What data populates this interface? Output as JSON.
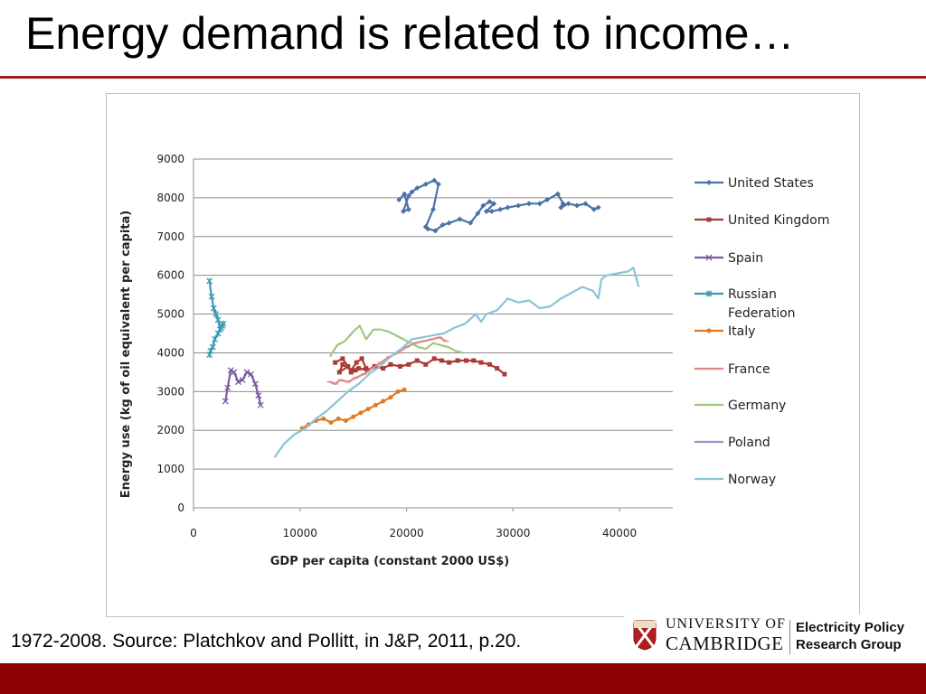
{
  "slide": {
    "title": "Energy demand is related to income…",
    "footer": "1972-2008.  Source: Platchkov and Pollitt, in J&P, 2011, p.20.",
    "accent_color": "#a01c1c",
    "bottom_bar_color": "#8b0000"
  },
  "logo": {
    "university_line1": "UNIVERSITY OF",
    "university_line2": "CAMBRIDGE",
    "group_line1": "Electricity Policy",
    "group_line2": "Research Group"
  },
  "chart_data": {
    "type": "line",
    "title": "",
    "xlabel": "GDP per capita (constant 2000 US$)",
    "ylabel": "Energy use (kg of oil equivalent per capita)",
    "xlim": [
      0,
      45000
    ],
    "ylim": [
      0,
      9000
    ],
    "xticks": [
      "0",
      "10000",
      "20000",
      "30000",
      "40000"
    ],
    "yticks": [
      "0",
      "1000",
      "2000",
      "3000",
      "4000",
      "5000",
      "6000",
      "7000",
      "8000",
      "9000"
    ],
    "grid": "horizontal",
    "legend_position": "right",
    "series": [
      {
        "name": "United States",
        "color": "#4a72a8",
        "marker": "diamond",
        "x": [
          19300,
          19800,
          20200,
          19700,
          20200,
          20500,
          21000,
          21800,
          22600,
          23000,
          22500,
          21800,
          22000,
          22700,
          23400,
          24000,
          25000,
          26000,
          26700,
          27200,
          27800,
          28200,
          27500,
          28000,
          28800,
          29500,
          30500,
          31500,
          32500,
          33200,
          34200,
          34700,
          34500,
          35200,
          36000,
          36800,
          37600,
          38000
        ],
        "y": [
          7950,
          8100,
          7700,
          7650,
          8050,
          8150,
          8250,
          8350,
          8450,
          8350,
          7700,
          7250,
          7200,
          7150,
          7300,
          7350,
          7450,
          7350,
          7600,
          7800,
          7900,
          7850,
          7650,
          7650,
          7700,
          7750,
          7800,
          7850,
          7850,
          7950,
          8100,
          7850,
          7750,
          7850,
          7800,
          7850,
          7700,
          7750
        ]
      },
      {
        "name": "United Kingdom",
        "color": "#a83c38",
        "marker": "square",
        "x": [
          13300,
          14000,
          14500,
          13700,
          14000,
          14800,
          15300,
          15800,
          16200,
          15200,
          14800,
          15500,
          16300,
          17000,
          17800,
          18500,
          19400,
          20200,
          21000,
          21800,
          22600,
          23300,
          24000,
          24800,
          25600,
          26300,
          27000,
          27800,
          28500,
          29200
        ],
        "y": [
          3750,
          3850,
          3650,
          3500,
          3700,
          3550,
          3750,
          3850,
          3600,
          3550,
          3500,
          3600,
          3550,
          3650,
          3600,
          3700,
          3650,
          3700,
          3800,
          3700,
          3850,
          3800,
          3750,
          3800,
          3800,
          3800,
          3750,
          3700,
          3600,
          3450
        ]
      },
      {
        "name": "Spain",
        "color": "#7b5aa6",
        "marker": "cross",
        "x": [
          3000,
          3200,
          3500,
          3800,
          4200,
          4600,
          5000,
          5400,
          5800,
          6100,
          6300
        ],
        "y": [
          2750,
          3100,
          3550,
          3500,
          3250,
          3300,
          3500,
          3450,
          3200,
          2900,
          2650
        ]
      },
      {
        "name": "Russian Federation",
        "color": "#3a9ab4",
        "marker": "star",
        "x": [
          1500,
          1700,
          1900,
          2100,
          2300,
          2500,
          2700,
          2800,
          2600,
          2300,
          2000,
          1800,
          1600,
          1500
        ],
        "y": [
          5850,
          5450,
          5150,
          5000,
          4850,
          4600,
          4700,
          4750,
          4650,
          4500,
          4350,
          4150,
          4050,
          3950
        ]
      },
      {
        "name": "Italy",
        "color": "#e07b24",
        "marker": "circle",
        "x": [
          10200,
          10800,
          11500,
          12200,
          12900,
          13600,
          14300,
          15000,
          15700,
          16400,
          17100,
          17800,
          18500,
          19200,
          19800
        ],
        "y": [
          2050,
          2150,
          2250,
          2300,
          2200,
          2300,
          2250,
          2350,
          2450,
          2550,
          2650,
          2750,
          2850,
          3000,
          3050
        ]
      },
      {
        "name": "France",
        "color": "#e08784",
        "marker": "dash",
        "x": [
          12800,
          13300,
          13800,
          14500,
          15200,
          16000,
          16800,
          17600,
          18400,
          19200,
          20000,
          20800,
          21600,
          22400,
          23100,
          23700
        ],
        "y": [
          3250,
          3200,
          3300,
          3250,
          3350,
          3450,
          3600,
          3750,
          3900,
          4000,
          4150,
          4250,
          4300,
          4350,
          4400,
          4300
        ]
      },
      {
        "name": "Germany",
        "color": "#9ec97a",
        "marker": "none",
        "x": [
          12800,
          13500,
          14200,
          15000,
          15600,
          16200,
          16900,
          17600,
          18300,
          19000,
          19700,
          20400,
          21100,
          21800,
          22500,
          23200,
          23900,
          24600,
          25300
        ],
        "y": [
          3900,
          4200,
          4300,
          4550,
          4700,
          4350,
          4600,
          4600,
          4550,
          4450,
          4350,
          4250,
          4150,
          4100,
          4250,
          4200,
          4150,
          4050,
          4000
        ]
      },
      {
        "name": "Poland",
        "color": "#9f91c4",
        "marker": "none",
        "x": [],
        "y": []
      },
      {
        "name": "Norway",
        "color": "#88c4d6",
        "marker": "none",
        "x": [
          7600,
          8500,
          9500,
          10500,
          11500,
          12500,
          13500,
          14500,
          15500,
          16500,
          17500,
          18500,
          19500,
          20500,
          21500,
          22500,
          23500,
          24500,
          25500,
          26500,
          27000,
          27500,
          28500,
          29500,
          30500,
          31500,
          32500,
          33500,
          34500,
          35500,
          36500,
          37500,
          38000,
          38300,
          38800,
          39800,
          40800,
          41300,
          41800
        ],
        "y": [
          1300,
          1650,
          1900,
          2050,
          2300,
          2500,
          2750,
          3000,
          3200,
          3450,
          3650,
          3900,
          4100,
          4350,
          4400,
          4450,
          4500,
          4650,
          4750,
          5000,
          4800,
          5000,
          5100,
          5400,
          5300,
          5350,
          5150,
          5200,
          5400,
          5550,
          5700,
          5600,
          5400,
          5900,
          6000,
          6050,
          6100,
          6200,
          5700
        ]
      }
    ]
  }
}
